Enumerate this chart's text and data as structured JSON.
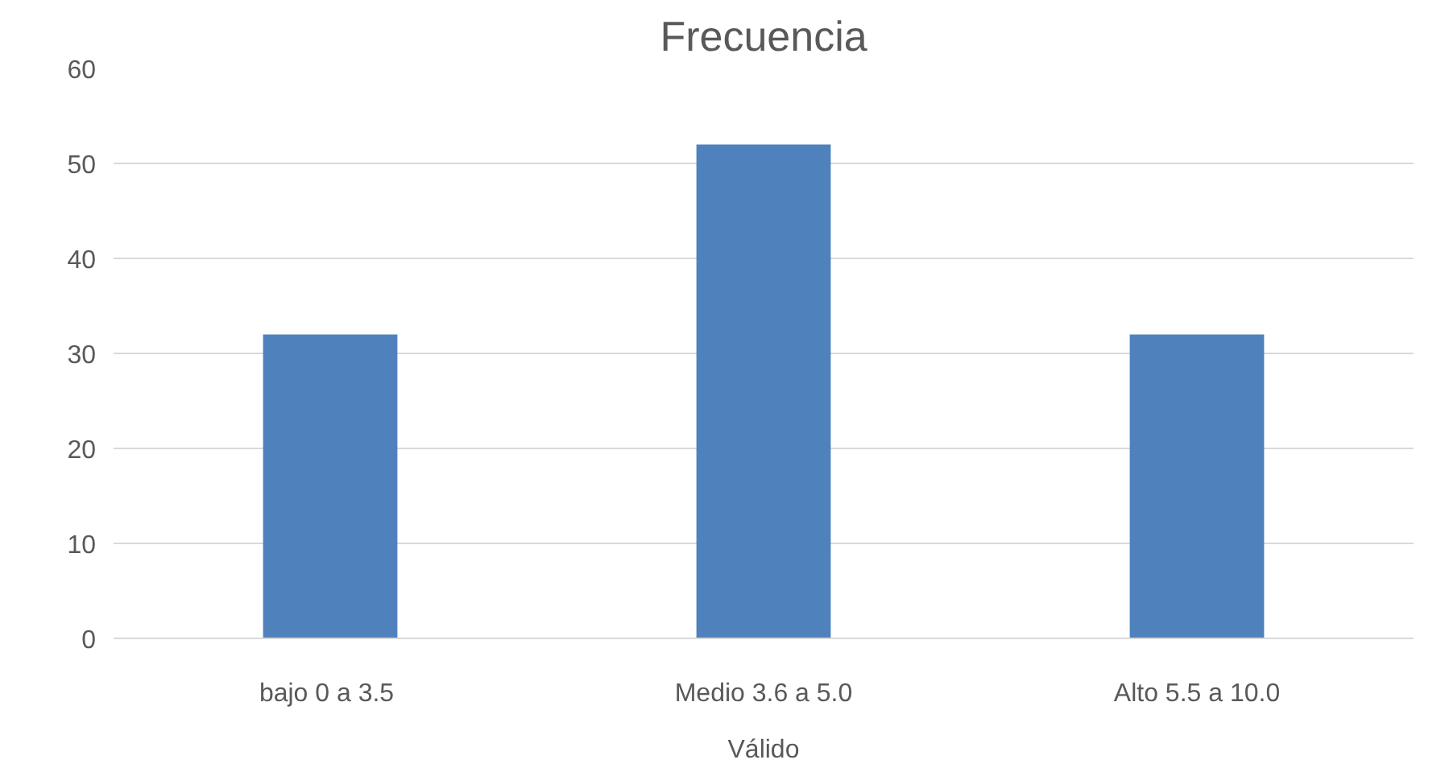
{
  "chart_data": {
    "type": "bar",
    "title": "Frecuencia",
    "xlabel": "Válido",
    "categories": [
      "bajo 0 a  3.5",
      "Medio 3.6 a 5.0",
      "Alto 5.5 a 10.0"
    ],
    "values": [
      32,
      52,
      32
    ],
    "color": "#4f81bd",
    "ylim": [
      0,
      60
    ],
    "yticks": [
      0,
      10,
      20,
      30,
      40,
      50,
      60
    ],
    "grid": "y"
  }
}
